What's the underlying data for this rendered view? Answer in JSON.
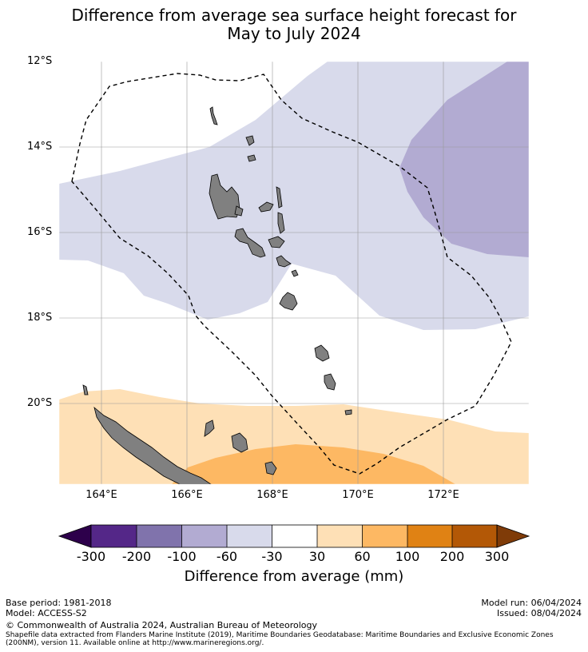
{
  "title": {
    "line1": "Difference from average sea surface height forecast for",
    "line2": "May to July 2024"
  },
  "map": {
    "lat_labels": [
      "12°S",
      "14°S",
      "16°S",
      "18°S",
      "20°S"
    ],
    "lon_labels": [
      "164°E",
      "166°E",
      "168°E",
      "170°E",
      "172°E"
    ],
    "land_color": "#808080",
    "eez_style": "dashed"
  },
  "colorbar": {
    "label": "Difference from average (mm)",
    "ticks": [
      "-300",
      "-200",
      "-100",
      "-60",
      "-30",
      "30",
      "60",
      "100",
      "200",
      "300"
    ],
    "colors": [
      "#2d004b",
      "#542788",
      "#8073ac",
      "#b2abd2",
      "#d8daeb",
      "#ffffff",
      "#fee0b6",
      "#fdb863",
      "#e08214",
      "#b35806",
      "#7f3b08"
    ]
  },
  "footer": {
    "base_period": "Base period: 1981-2018",
    "model": "Model: ACCESS-S2",
    "model_run": "Model run: 06/04/2024",
    "issued": "Issued: 08/04/2024",
    "copyright": "© Commonwealth of Australia 2024, Australian Bureau of Meteorology",
    "shapefile_line1": "Shapefile data extracted from Flanders Marine Institute (2019), Maritime Boundaries Geodatabase: Maritime Boundaries and Exclusive Economic Zones",
    "shapefile_line2": "(200NM), version 11. Available online at http://www.marineregions.org/."
  }
}
